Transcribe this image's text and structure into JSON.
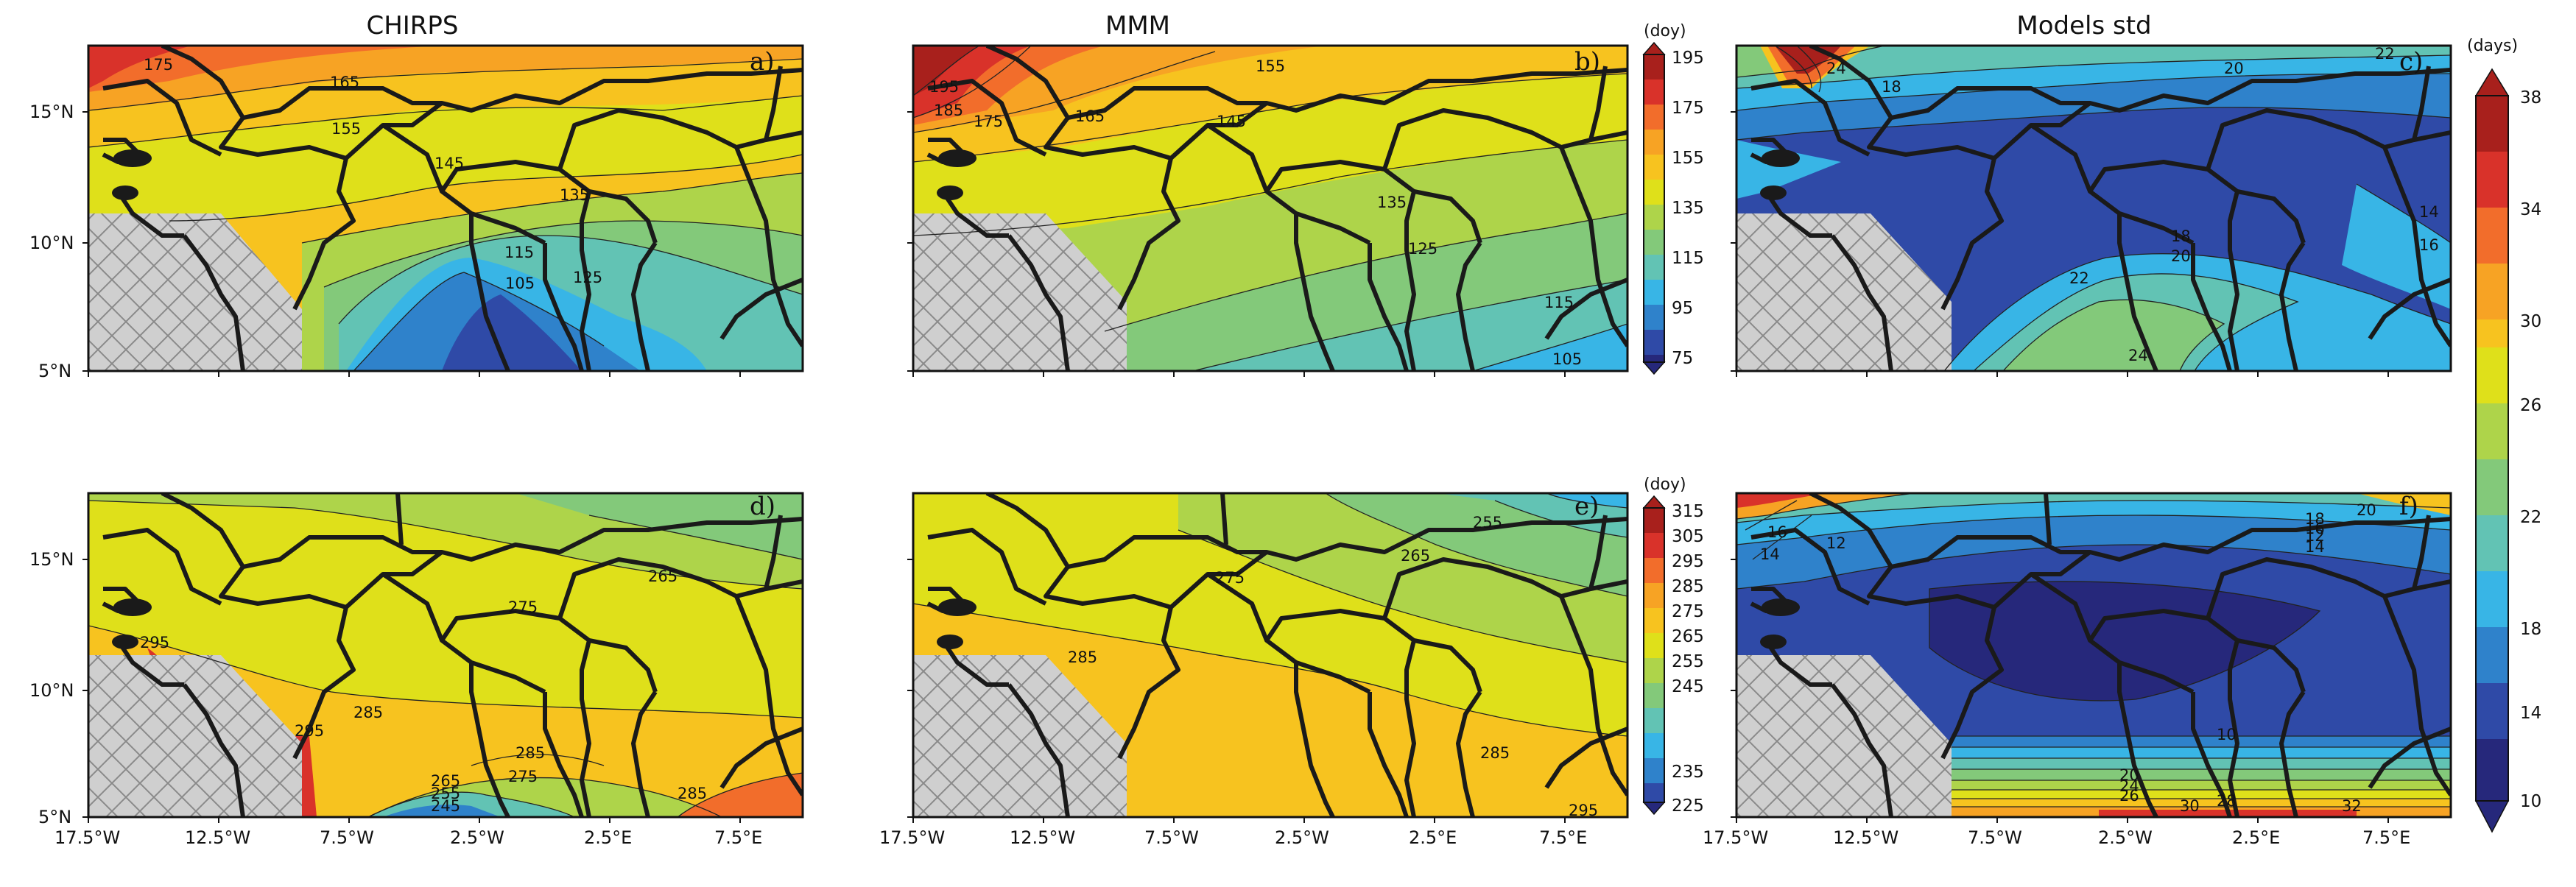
{
  "titles": {
    "col1": "CHIRPS",
    "col2": "MMM",
    "col3": "Models std"
  },
  "panel_letters": [
    "a)",
    "b)",
    "c)",
    "d)",
    "e)",
    "f)"
  ],
  "lon_ticks": [
    "17.5°W",
    "12.5°W",
    "7.5°W",
    "2.5°W",
    "2.5°E",
    "7.5°E"
  ],
  "lat_ticks": [
    "15°N",
    "10°N",
    "5°N"
  ],
  "colorbar_top": {
    "unit": "(doy)",
    "labels": [
      "195",
      "175",
      "155",
      "135",
      "115",
      "95",
      "75"
    ],
    "colors": [
      "#a8201c",
      "#d9322a",
      "#f26d2b",
      "#f7a324",
      "#f7c31f",
      "#dfe01a",
      "#aed44a",
      "#83c97a",
      "#62c3b4",
      "#38b5e6",
      "#2f82cb",
      "#2f4aa7",
      "#26287b"
    ]
  },
  "colorbar_mid": {
    "unit": "(doy)",
    "labels": [
      "315",
      "305",
      "295",
      "285",
      "275",
      "265",
      "255",
      "245",
      "235",
      "225"
    ],
    "colors": [
      "#a8201c",
      "#d9322a",
      "#f26d2b",
      "#f7a324",
      "#f7c31f",
      "#dfe01a",
      "#aed44a",
      "#83c97a",
      "#62c3b4",
      "#38b5e6",
      "#2f82cb",
      "#2f4aa7",
      "#26287b"
    ]
  },
  "colorbar_right": {
    "unit": "(days)",
    "labels": [
      "38",
      "34",
      "30",
      "26",
      "22",
      "18",
      "14",
      "10"
    ],
    "colors": [
      "#a8201c",
      "#d9322a",
      "#f26d2b",
      "#f7a324",
      "#f7c31f",
      "#dfe01a",
      "#aed44a",
      "#83c97a",
      "#62c3b4",
      "#38b5e6",
      "#2f82cb",
      "#2f4aa7",
      "#26287b"
    ]
  },
  "contour_labels": {
    "a": [
      "165",
      "155",
      "145",
      "135",
      "125",
      "115",
      "105",
      "175"
    ],
    "b": [
      "195",
      "185",
      "175",
      "165",
      "155",
      "145",
      "135",
      "125",
      "115",
      "105"
    ],
    "c": [
      "20",
      "22",
      "24",
      "18",
      "14",
      "16",
      "20",
      "22",
      "24",
      "18"
    ],
    "d": [
      "265",
      "275",
      "285",
      "295",
      "285",
      "275",
      "265",
      "255",
      "245",
      "295",
      "285"
    ],
    "e": [
      "255",
      "265",
      "275",
      "285",
      "285",
      "295"
    ],
    "f": [
      "12",
      "14",
      "16",
      "18",
      "20",
      "12",
      "10",
      "14",
      "16",
      "20",
      "24",
      "26",
      "28",
      "30",
      "32"
    ]
  }
}
